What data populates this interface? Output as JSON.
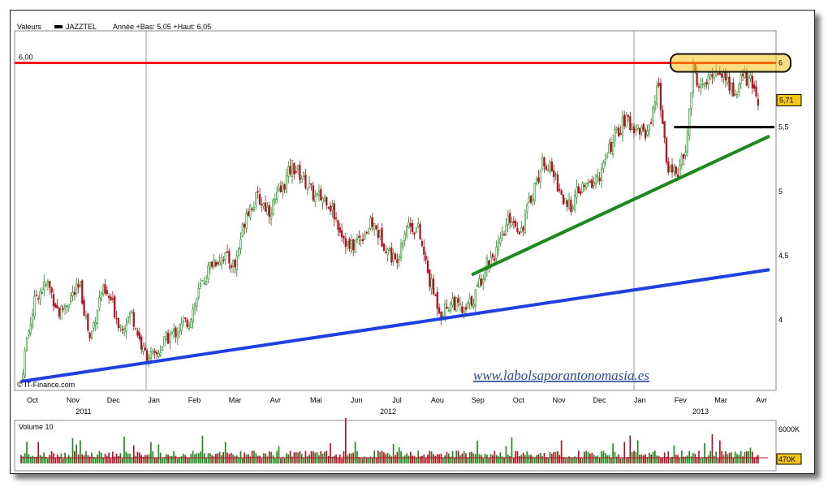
{
  "chart_data": [
    {
      "type": "candlestick",
      "legend": {
        "label": "Valeurs",
        "series_name": "JAZZTEL",
        "stats": "Année +Bas: 5,05 +Haut: 6,05"
      },
      "resistance_label": "6,00",
      "y_ticks": [
        "6",
        "5,5",
        "5",
        "4,5",
        "4"
      ],
      "y_tick_values": [
        6.0,
        5.5,
        5.0,
        4.5,
        4.0
      ],
      "ylim": [
        3.45,
        6.25
      ],
      "last_price": "5,71",
      "last_value": 5.71,
      "x_months": [
        "Oct",
        "Nov",
        "Dec",
        "Jan",
        "Feb",
        "Mar",
        "Avr",
        "Mai",
        "Jun",
        "Jul",
        "Aou",
        "Sep",
        "Oct",
        "Nov",
        "Dec",
        "Jan",
        "Fev",
        "Mar",
        "Avr"
      ],
      "x_years": [
        "2011",
        "2012",
        "2013"
      ],
      "source": "© IT-Finance.com",
      "watermark": "www.labolsaporantonomasia.es",
      "price_path": [
        [
          0,
          3.52
        ],
        [
          3,
          3.85
        ],
        [
          8,
          4.2
        ],
        [
          14,
          4.28
        ],
        [
          20,
          4.05
        ],
        [
          26,
          4.18
        ],
        [
          31,
          4.25
        ],
        [
          36,
          3.85
        ],
        [
          42,
          4.22
        ],
        [
          47,
          4.15
        ],
        [
          52,
          3.95
        ],
        [
          58,
          4.05
        ],
        [
          64,
          3.75
        ],
        [
          70,
          3.7
        ],
        [
          76,
          3.85
        ],
        [
          82,
          3.92
        ],
        [
          88,
          4.0
        ],
        [
          94,
          4.25
        ],
        [
          100,
          4.45
        ],
        [
          106,
          4.5
        ],
        [
          112,
          4.42
        ],
        [
          118,
          4.85
        ],
        [
          124,
          4.95
        ],
        [
          130,
          4.85
        ],
        [
          136,
          5.0
        ],
        [
          142,
          5.2
        ],
        [
          148,
          5.1
        ],
        [
          154,
          4.95
        ],
        [
          160,
          4.95
        ],
        [
          166,
          4.75
        ],
        [
          172,
          4.55
        ],
        [
          178,
          4.65
        ],
        [
          184,
          4.75
        ],
        [
          190,
          4.6
        ],
        [
          196,
          4.45
        ],
        [
          202,
          4.75
        ],
        [
          208,
          4.7
        ],
        [
          214,
          4.3
        ],
        [
          220,
          4.05
        ],
        [
          226,
          4.15
        ],
        [
          232,
          4.05
        ],
        [
          238,
          4.2
        ],
        [
          244,
          4.45
        ],
        [
          250,
          4.55
        ],
        [
          256,
          4.8
        ],
        [
          262,
          4.7
        ],
        [
          268,
          5.0
        ],
        [
          274,
          5.25
        ],
        [
          280,
          5.1
        ],
        [
          286,
          4.85
        ],
        [
          292,
          5.0
        ],
        [
          298,
          5.05
        ],
        [
          304,
          5.15
        ],
        [
          310,
          5.4
        ],
        [
          316,
          5.55
        ],
        [
          322,
          5.5
        ],
        [
          328,
          5.45
        ],
        [
          334,
          5.85
        ],
        [
          338,
          5.2
        ],
        [
          344,
          5.15
        ],
        [
          348,
          5.3
        ],
        [
          352,
          5.95
        ],
        [
          356,
          5.8
        ],
        [
          360,
          5.85
        ],
        [
          364,
          5.95
        ],
        [
          368,
          5.9
        ],
        [
          374,
          5.75
        ],
        [
          378,
          5.9
        ],
        [
          382,
          5.85
        ],
        [
          386,
          5.71
        ]
      ],
      "volume": {
        "label": "Volume 10",
        "max_label": "6000K",
        "last_label": "470K"
      },
      "trendlines": [
        {
          "color": "#1f3fe0",
          "from": [
            0,
            3.52
          ],
          "to": [
            392,
            4.39
          ]
        },
        {
          "color": "#1a8a1a",
          "from": [
            236,
            4.35
          ],
          "to": [
            392,
            5.43
          ]
        }
      ],
      "support_line": {
        "value": 5.5,
        "from": 342,
        "to": 392
      },
      "colors": {
        "up": "#1a8a1a",
        "down": "#b01020",
        "resistance": "#ff0000",
        "highlight": "#f5c518",
        "last_tag": "#f5c518"
      }
    }
  ]
}
